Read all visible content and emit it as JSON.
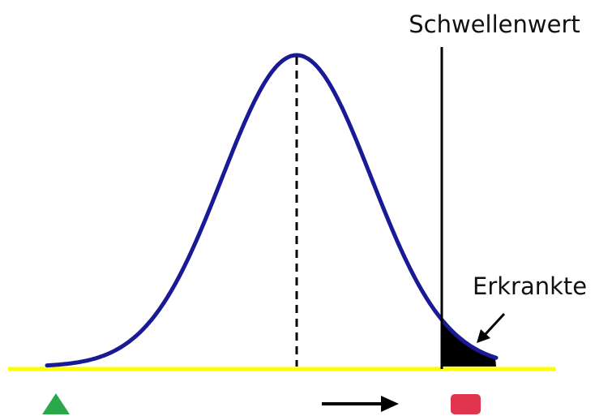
{
  "labels": {
    "threshold": "Schwellenwert",
    "affected": "Erkrankte"
  },
  "colors": {
    "curve": "#1a1a96",
    "baseline": "#ffff00",
    "threshold_line": "#000000",
    "tail_fill": "#000000",
    "healthy_marker": "#2aa84a",
    "affected_marker": "#e0344f",
    "arrow": "#000000"
  },
  "icons": {
    "healthy_marker": "green-triangle-icon",
    "affected_marker": "red-square-icon",
    "direction_arrow": "right-arrow-icon"
  }
}
